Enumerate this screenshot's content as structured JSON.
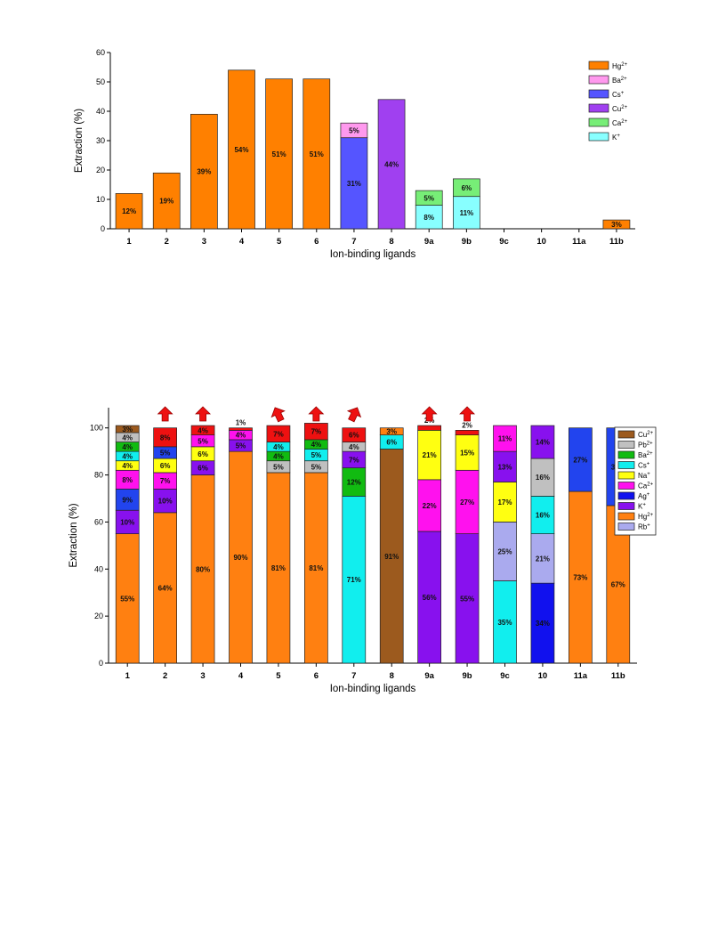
{
  "chart_data": [
    {
      "type": "bar",
      "stacked": true,
      "xlabel": "Ion-binding ligands",
      "ylabel": "Extraction (%)",
      "ylim": [
        0,
        60
      ],
      "yticks": [
        0,
        10,
        20,
        30,
        40,
        50,
        60
      ],
      "legend_position": "top-right",
      "categories": [
        "1",
        "2",
        "3",
        "4",
        "5",
        "6",
        "7",
        "8",
        "9a",
        "9b",
        "9c",
        "10",
        "11a",
        "11b"
      ],
      "legend": [
        {
          "key": "Hg",
          "base": "Hg",
          "sup": "2+",
          "color": "#FF8000"
        },
        {
          "key": "Ba",
          "base": "Ba",
          "sup": "2+",
          "color": "#FF99EE"
        },
        {
          "key": "Cs",
          "base": "Cs",
          "sup": "+",
          "color": "#5555FF"
        },
        {
          "key": "Cu",
          "base": "Cu",
          "sup": "2+",
          "color": "#A040F0"
        },
        {
          "key": "Ca",
          "base": "Ca",
          "sup": "2+",
          "color": "#77EE77"
        },
        {
          "key": "K",
          "base": "K",
          "sup": "+",
          "color": "#88FFFF"
        }
      ],
      "bars": [
        [
          {
            "ion": "Hg",
            "value": 12,
            "label": "12%"
          }
        ],
        [
          {
            "ion": "Hg",
            "value": 19,
            "label": "19%"
          }
        ],
        [
          {
            "ion": "Hg",
            "value": 39,
            "label": "39%"
          }
        ],
        [
          {
            "ion": "Hg",
            "value": 54,
            "label": "54%"
          }
        ],
        [
          {
            "ion": "Hg",
            "value": 51,
            "label": "51%"
          }
        ],
        [
          {
            "ion": "Hg",
            "value": 51,
            "label": "51%"
          }
        ],
        [
          {
            "ion": "Cs",
            "value": 31,
            "label": "31%"
          },
          {
            "ion": "Ba",
            "value": 5,
            "label": "5%"
          }
        ],
        [
          {
            "ion": "Cu",
            "value": 44,
            "label": "44%"
          }
        ],
        [
          {
            "ion": "K",
            "value": 8,
            "label": "8%"
          },
          {
            "ion": "Ca",
            "value": 5,
            "label": "5%"
          }
        ],
        [
          {
            "ion": "K",
            "value": 11,
            "label": "11%"
          },
          {
            "ion": "Ca",
            "value": 6,
            "label": "6%"
          }
        ],
        [],
        [],
        [],
        [
          {
            "ion": "Hg",
            "value": 3,
            "label": "3%"
          }
        ]
      ]
    },
    {
      "type": "bar",
      "stacked": true,
      "xlabel": "Ion-binding ligands",
      "ylabel": "Extraction (%)",
      "ylim": [
        0,
        105
      ],
      "yticks": [
        0,
        20,
        40,
        60,
        80,
        100
      ],
      "legend_position": "top-right",
      "categories": [
        "1",
        "2",
        "3",
        "4",
        "5",
        "6",
        "7",
        "8",
        "9a",
        "9b",
        "9c",
        "10",
        "11a",
        "11b"
      ],
      "legend": [
        {
          "key": "Cu",
          "base": "Cu",
          "sup": "2+",
          "color": "#9C5A1E"
        },
        {
          "key": "Pb",
          "base": "Pb",
          "sup": "2+",
          "color": "#C0C0C0"
        },
        {
          "key": "Ba",
          "base": "Ba",
          "sup": "2+",
          "color": "#11BB11"
        },
        {
          "key": "Cs",
          "base": "Cs",
          "sup": "+",
          "color": "#11EEEE"
        },
        {
          "key": "Na",
          "base": "Na",
          "sup": "+",
          "color": "#FFFF11"
        },
        {
          "key": "Ca",
          "base": "Ca",
          "sup": "2+",
          "color": "#FF11EE"
        },
        {
          "key": "Ag",
          "base": "Ag",
          "sup": "+",
          "color": "#1111EE"
        },
        {
          "key": "K",
          "base": "K",
          "sup": "+",
          "color": "#8811EE"
        },
        {
          "key": "Hg",
          "base": "Hg",
          "sup": "2+",
          "color": "#FF8011"
        },
        {
          "key": "Rb",
          "base": "Rb",
          "sup": "+",
          "color": "#AAAAEE"
        }
      ],
      "extra_colors": {
        "Red": "#EE1111",
        "Blue": "#2244EE"
      },
      "bars": [
        [
          {
            "ion": "Hg",
            "value": 55,
            "label": "55%"
          },
          {
            "ion": "K",
            "value": 10,
            "label": "10%"
          },
          {
            "ion": "Blue",
            "value": 9,
            "label": "9%"
          },
          {
            "ion": "Ca",
            "value": 8,
            "label": "8%"
          },
          {
            "ion": "Na",
            "value": 4,
            "label": "4%"
          },
          {
            "ion": "Cs",
            "value": 4,
            "label": "4%"
          },
          {
            "ion": "Ba",
            "value": 4,
            "label": "4%"
          },
          {
            "ion": "Pb",
            "value": 4,
            "label": "4%"
          },
          {
            "ion": "Cu",
            "value": 3,
            "label": "3%"
          }
        ],
        [
          {
            "ion": "Hg",
            "value": 64,
            "label": "64%"
          },
          {
            "ion": "K",
            "value": 10,
            "label": "10%"
          },
          {
            "ion": "Ca",
            "value": 7,
            "label": "7%"
          },
          {
            "ion": "Na",
            "value": 6,
            "label": "6%"
          },
          {
            "ion": "Blue",
            "value": 5,
            "label": "5%"
          },
          {
            "ion": "Red",
            "value": 8,
            "label": "8%"
          }
        ],
        [
          {
            "ion": "Hg",
            "value": 80,
            "label": "80%"
          },
          {
            "ion": "K",
            "value": 6,
            "label": "6%"
          },
          {
            "ion": "Na",
            "value": 6,
            "label": "6%"
          },
          {
            "ion": "Ca",
            "value": 5,
            "label": "5%"
          },
          {
            "ion": "Red",
            "value": 4,
            "label": "4%"
          }
        ],
        [
          {
            "ion": "Hg",
            "value": 90,
            "label": "90%"
          },
          {
            "ion": "K",
            "value": 5,
            "label": "5%"
          },
          {
            "ion": "Ca",
            "value": 4,
            "label": "4%"
          },
          {
            "ion": "Red",
            "value": 1,
            "label": "1%",
            "outside": true
          }
        ],
        [
          {
            "ion": "Hg",
            "value": 81,
            "label": "81%"
          },
          {
            "ion": "Pb",
            "value": 5,
            "label": "5%"
          },
          {
            "ion": "Ba",
            "value": 4,
            "label": "4%"
          },
          {
            "ion": "Cs",
            "value": 4,
            "label": "4%"
          },
          {
            "ion": "Red",
            "value": 7,
            "label": "7%"
          }
        ],
        [
          {
            "ion": "Hg",
            "value": 81,
            "label": "81%"
          },
          {
            "ion": "Pb",
            "value": 5,
            "label": "5%"
          },
          {
            "ion": "Cs",
            "value": 5,
            "label": "5%"
          },
          {
            "ion": "Ba",
            "value": 4,
            "label": "4%"
          },
          {
            "ion": "Red",
            "value": 7,
            "label": "7%"
          }
        ],
        [
          {
            "ion": "Cs",
            "value": 71,
            "label": "71%"
          },
          {
            "ion": "Ba",
            "value": 12,
            "label": "12%"
          },
          {
            "ion": "K",
            "value": 7,
            "label": "7%"
          },
          {
            "ion": "Pb",
            "value": 4,
            "label": "4%"
          },
          {
            "ion": "Red",
            "value": 6,
            "label": "6%"
          }
        ],
        [
          {
            "ion": "Cu",
            "value": 91,
            "label": "91%"
          },
          {
            "ion": "Cs",
            "value": 6,
            "label": "6%"
          },
          {
            "ion": "Hg",
            "value": 3,
            "label": "3%"
          }
        ],
        [
          {
            "ion": "K",
            "value": 56,
            "label": "56%"
          },
          {
            "ion": "Ca",
            "value": 22,
            "label": "22%"
          },
          {
            "ion": "Na",
            "value": 21,
            "label": "21%"
          },
          {
            "ion": "Red",
            "value": 2,
            "label": "2%",
            "outside": true
          }
        ],
        [
          {
            "ion": "K",
            "value": 55,
            "label": "55%"
          },
          {
            "ion": "Ca",
            "value": 27,
            "label": "27%"
          },
          {
            "ion": "Na",
            "value": 15,
            "label": "15%"
          },
          {
            "ion": "Red",
            "value": 2,
            "label": "2%",
            "outside": true
          }
        ],
        [
          {
            "ion": "Cs",
            "value": 35,
            "label": "35%"
          },
          {
            "ion": "Rb",
            "value": 25,
            "label": "25%"
          },
          {
            "ion": "Na",
            "value": 17,
            "label": "17%"
          },
          {
            "ion": "K",
            "value": 13,
            "label": "13%"
          },
          {
            "ion": "Ca",
            "value": 11,
            "label": "11%"
          }
        ],
        [
          {
            "ion": "Ag",
            "value": 34,
            "label": "34%"
          },
          {
            "ion": "Rb",
            "value": 21,
            "label": "21%"
          },
          {
            "ion": "Cs",
            "value": 16,
            "label": "16%"
          },
          {
            "ion": "Pb",
            "value": 16,
            "label": "16%"
          },
          {
            "ion": "K",
            "value": 14,
            "label": "14%"
          }
        ],
        [
          {
            "ion": "Hg",
            "value": 73,
            "label": "73%"
          },
          {
            "ion": "Blue",
            "value": 27,
            "label": "27%"
          }
        ],
        [
          {
            "ion": "Hg",
            "value": 67,
            "label": "67%"
          },
          {
            "ion": "Blue",
            "value": 33,
            "label": "33%"
          }
        ]
      ],
      "arrows": [
        {
          "category": "2",
          "direction": "up"
        },
        {
          "category": "3",
          "direction": "up"
        },
        {
          "category": "5",
          "direction": "up-left"
        },
        {
          "category": "6",
          "direction": "up"
        },
        {
          "category": "7",
          "direction": "up-right"
        },
        {
          "category": "9a",
          "direction": "up"
        },
        {
          "category": "9b",
          "direction": "up"
        }
      ]
    }
  ]
}
